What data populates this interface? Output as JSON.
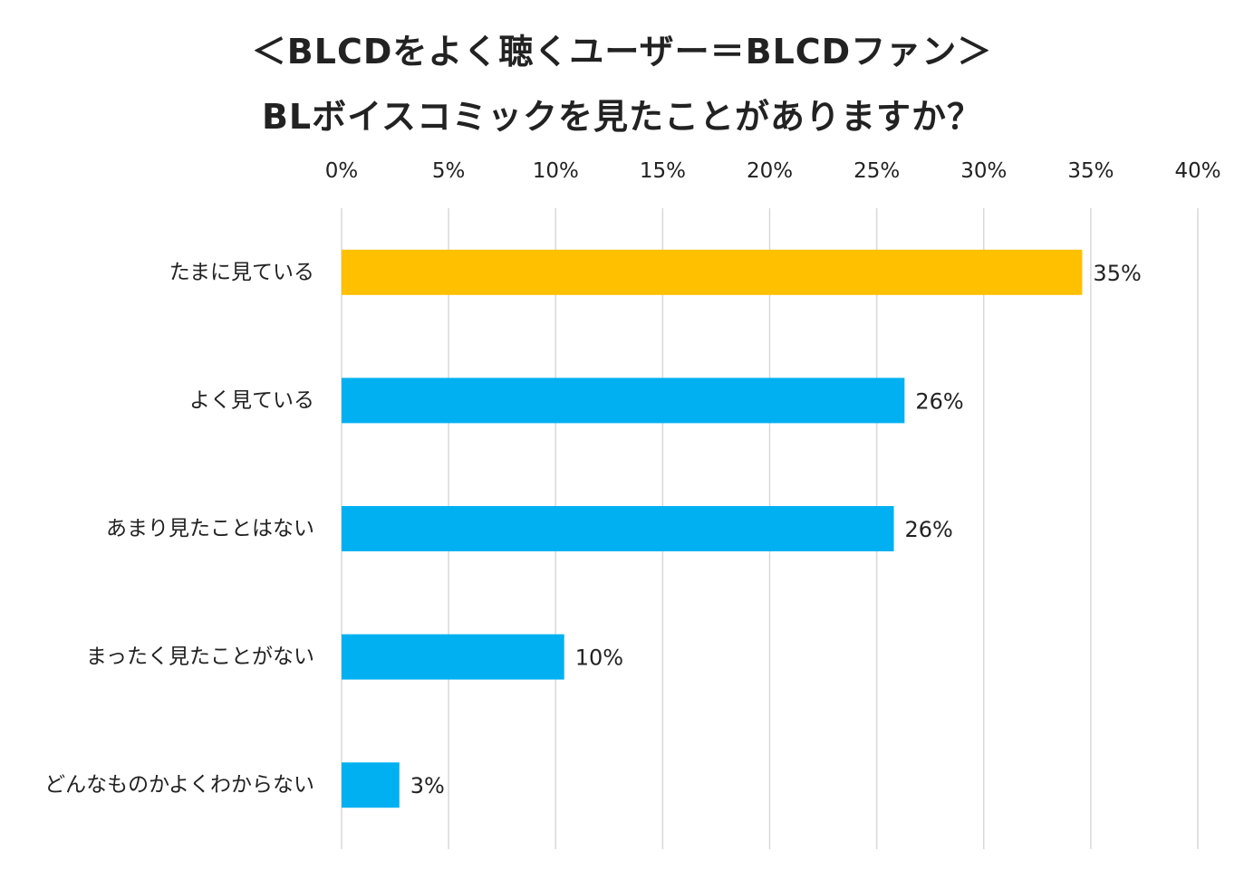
{
  "chart_data": {
    "type": "bar",
    "orientation": "horizontal",
    "title_line1": "＜BLCDをよく聴くユーザー＝BLCDファン＞",
    "title_line2": "BLボイスコミックを見たことがありますか？",
    "categories": [
      "たまに見ている",
      "よく見ている",
      "あまり見たことはない",
      "まったく見たことがない",
      "どんなものかよくわからない"
    ],
    "values": [
      34.6,
      26.3,
      25.8,
      10.4,
      2.7
    ],
    "data_labels": [
      "35%",
      "26%",
      "26%",
      "10%",
      "3%"
    ],
    "bar_colors": [
      "#FFC000",
      "#00B0F0",
      "#00B0F0",
      "#00B0F0",
      "#00B0F0"
    ],
    "xlim": [
      0,
      40
    ],
    "xticks": [
      0,
      5,
      10,
      15,
      20,
      25,
      30,
      35,
      40
    ],
    "xtick_labels": [
      "0%",
      "5%",
      "10%",
      "15%",
      "20%",
      "25%",
      "30%",
      "35%",
      "40%"
    ],
    "x_axis_position": "top",
    "grid": true,
    "xlabel": "",
    "ylabel": ""
  }
}
